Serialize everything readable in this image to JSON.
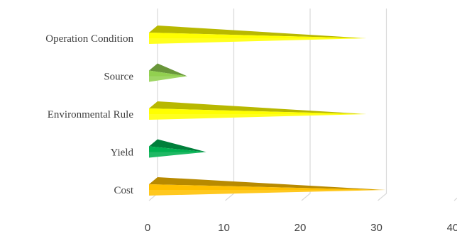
{
  "chart_data": {
    "type": "bar",
    "orientation": "horizontal",
    "style": "3d-cone",
    "categories": [
      "Operation Condition",
      "Source",
      "Environmental Rule",
      "Yield",
      "Cost"
    ],
    "values": [
      28.5,
      5,
      28.5,
      7.5,
      31
    ],
    "colors": [
      "#ffff00",
      "#92d050",
      "#ffff00",
      "#00b050",
      "#ffc000"
    ],
    "xlim": [
      0,
      40
    ],
    "xticks": [
      0,
      10,
      20,
      30,
      40
    ],
    "grid": true,
    "title": "",
    "xlabel": "",
    "ylabel": ""
  }
}
